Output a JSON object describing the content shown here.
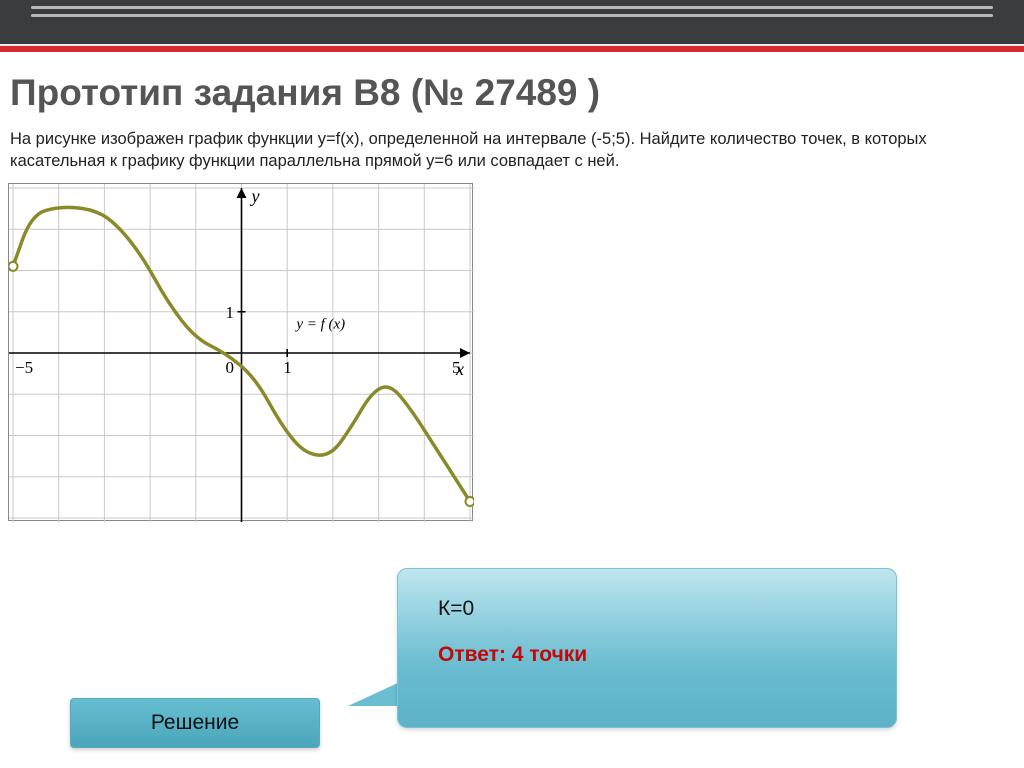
{
  "header": {
    "title": "Прототип задания B8 (№ 27489 )"
  },
  "problem": {
    "text": "На рисунке изображен график функции y=f(x), определенной на интервале (-5;5). Найдите количество точек, в которых касательная к графику функции параллельна прямой y=6 или совпадает с ней."
  },
  "chart": {
    "type": "line",
    "x_range": [
      -5,
      5
    ],
    "y_range": [
      -4,
      4
    ],
    "grid_step": 1,
    "grid_color": "#c9c9c9",
    "axis_color": "#000000",
    "curve_color": "#8a8a2a",
    "background_color": "#ffffff",
    "x_axis_label": "x",
    "y_axis_label": "y",
    "function_label": "y = f (x)",
    "tick_labels": {
      "x": [
        "-5",
        "0",
        "1",
        "5"
      ],
      "y": [
        "1"
      ]
    },
    "curve_points": [
      [
        -5,
        2.1
      ],
      [
        -4.6,
        3.35
      ],
      [
        -4,
        3.55
      ],
      [
        -3.3,
        3.5
      ],
      [
        -2.8,
        3.2
      ],
      [
        -2.2,
        2.4
      ],
      [
        -1.6,
        1.2
      ],
      [
        -1.0,
        0.35
      ],
      [
        -0.35,
        0.0
      ],
      [
        0.3,
        -0.6
      ],
      [
        0.9,
        -1.8
      ],
      [
        1.4,
        -2.45
      ],
      [
        1.95,
        -2.5
      ],
      [
        2.4,
        -1.8
      ],
      [
        2.85,
        -0.95
      ],
      [
        3.25,
        -0.75
      ],
      [
        3.7,
        -1.35
      ],
      [
        4.25,
        -2.3
      ],
      [
        5.0,
        -3.6
      ]
    ],
    "open_endpoints": [
      [
        -5,
        2.1
      ],
      [
        5,
        -3.6
      ]
    ]
  },
  "solution": {
    "line1": "К=0",
    "answer": "Ответ: 4 точки"
  },
  "button": {
    "label": "Решение"
  }
}
